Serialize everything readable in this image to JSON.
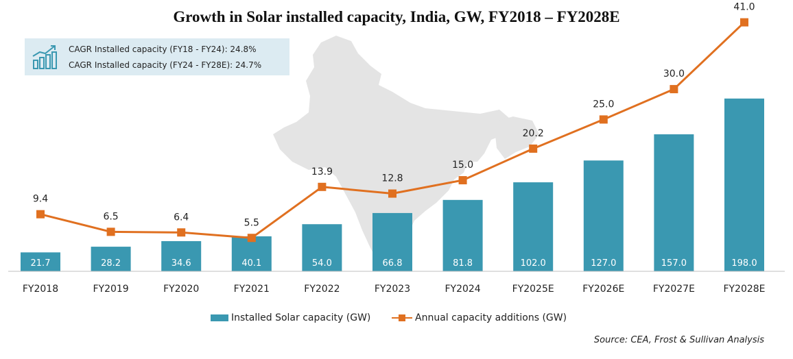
{
  "chart_data": {
    "type": "bar",
    "title": "Growth in Solar installed capacity, India, GW, FY2018 – FY2028E",
    "categories": [
      "FY2018",
      "FY2019",
      "FY2020",
      "FY2021",
      "FY2022",
      "FY2023",
      "FY2024",
      "FY2025E",
      "FY2026E",
      "FY2027E",
      "FY2028E"
    ],
    "series": [
      {
        "name": "Installed Solar capacity (GW)",
        "type": "bar",
        "color": "#3a98b1",
        "values": [
          21.7,
          28.2,
          34.6,
          40.1,
          54.0,
          66.8,
          81.8,
          102.0,
          127.0,
          157.0,
          198.0
        ],
        "labels": [
          "21.7",
          "28.2",
          "34.6",
          "40.1",
          "54.0",
          "66.8",
          "81.8",
          "102.0",
          "127.0",
          "157.0",
          "198.0"
        ]
      },
      {
        "name": "Annual capacity additions (GW)",
        "type": "line",
        "color": "#e07020",
        "marker": "square",
        "values": [
          9.4,
          6.5,
          6.4,
          5.5,
          13.9,
          12.8,
          15.0,
          20.2,
          25.0,
          30.0,
          41.0
        ],
        "labels": [
          "9.4",
          "6.5",
          "6.4",
          "5.5",
          "13.9",
          "12.8",
          "15.0",
          "20.2",
          "25.0",
          "30.0",
          "41.0"
        ]
      }
    ],
    "bar_axis_range": [
      0,
      212
    ],
    "line_axis_range": [
      0,
      44
    ],
    "legend_position": "bottom-center",
    "grid": false,
    "annotations": [
      "CAGR Installed capacity (FY18 - FY24): 24.8%",
      "CAGR Installed capacity (FY24 - FY28E): 24.7%"
    ],
    "source": "Source: CEA, Frost & Sullivan Analysis"
  },
  "colors": {
    "bar": "#3a98b1",
    "line": "#e07020",
    "box_background": "#dcebf2",
    "map_background": "#e4e4e4"
  },
  "icons": [
    "growth-chart-icon"
  ]
}
